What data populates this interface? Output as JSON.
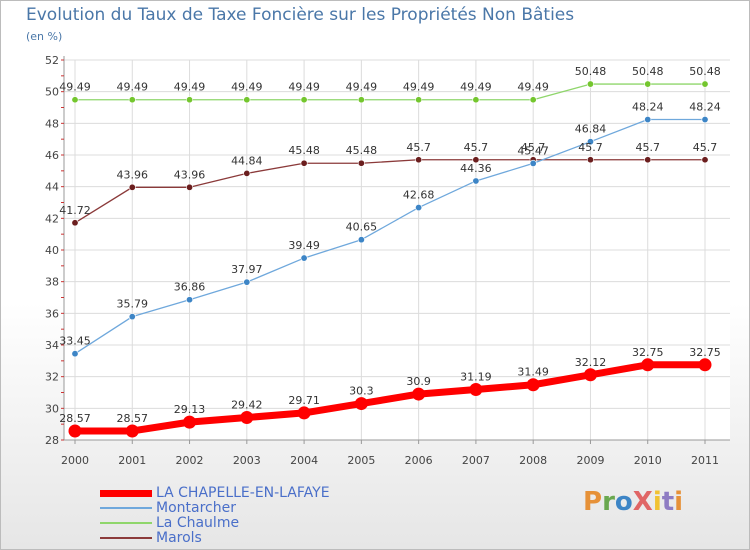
{
  "title": "Evolution du Taux de Taxe Foncière sur les Propriétés Non Bâties",
  "unit_label": "(en %)",
  "logo_text": "ProXiti",
  "chart_data": {
    "type": "line",
    "title": "Evolution du Taux de Taxe Foncière sur les Propriétés Non Bâties",
    "ylabel": "(en %)",
    "xlabel": "",
    "x": [
      "2000",
      "2001",
      "2002",
      "2003",
      "2004",
      "2005",
      "2006",
      "2007",
      "2008",
      "2009",
      "2010",
      "2011"
    ],
    "ylim": [
      28,
      52
    ],
    "yticks": [
      "28",
      "30",
      "32",
      "34",
      "36",
      "38",
      "40",
      "42",
      "44",
      "46",
      "48",
      "50",
      "52"
    ],
    "grid": true,
    "legend_position": "bottom-left",
    "series": [
      {
        "name": "LA CHAPELLE-EN-LAFAYE",
        "color": "#ff0000",
        "marker_color": "#ff0000",
        "values": [
          28.57,
          28.57,
          29.13,
          29.42,
          29.71,
          30.3,
          30.9,
          31.19,
          31.49,
          32.12,
          32.75,
          32.75
        ],
        "labels": [
          "28.57",
          "28.57",
          "29.13",
          "29.42",
          "29.71",
          "30.3",
          "30.9",
          "31.19",
          "31.49",
          "32.12",
          "32.75",
          "32.75"
        ]
      },
      {
        "name": "Montarcher",
        "color": "#6fa8dc",
        "marker_color": "#3d85c6",
        "values": [
          33.45,
          35.79,
          36.86,
          37.97,
          39.49,
          40.65,
          42.68,
          44.36,
          45.47,
          46.84,
          48.24,
          48.24
        ],
        "labels": [
          "33.45",
          "35.79",
          "36.86",
          "37.97",
          "39.49",
          "40.65",
          "42.68",
          "44.36",
          "45.47",
          "46.84",
          "48.24",
          "48.24"
        ]
      },
      {
        "name": "La Chaulme",
        "color": "#8fd66b",
        "marker_color": "#74c62e",
        "values": [
          49.49,
          49.49,
          49.49,
          49.49,
          49.49,
          49.49,
          49.49,
          49.49,
          49.49,
          50.48,
          50.48,
          50.48
        ],
        "labels": [
          "49.49",
          "49.49",
          "49.49",
          "49.49",
          "49.49",
          "49.49",
          "49.49",
          "49.49",
          "49.49",
          "50.48",
          "50.48",
          "50.48"
        ]
      },
      {
        "name": "Marols",
        "color": "#8b3a3a",
        "marker_color": "#6b1e1e",
        "values": [
          41.72,
          43.96,
          43.96,
          44.84,
          45.48,
          45.48,
          45.7,
          45.7,
          45.7,
          45.7,
          45.7,
          45.7
        ],
        "labels": [
          "41.72",
          "43.96",
          "43.96",
          "44.84",
          "45.48",
          "45.48",
          "45.7",
          "45.7",
          "45.7",
          "45.7",
          "45.7",
          "45.7"
        ]
      }
    ]
  }
}
